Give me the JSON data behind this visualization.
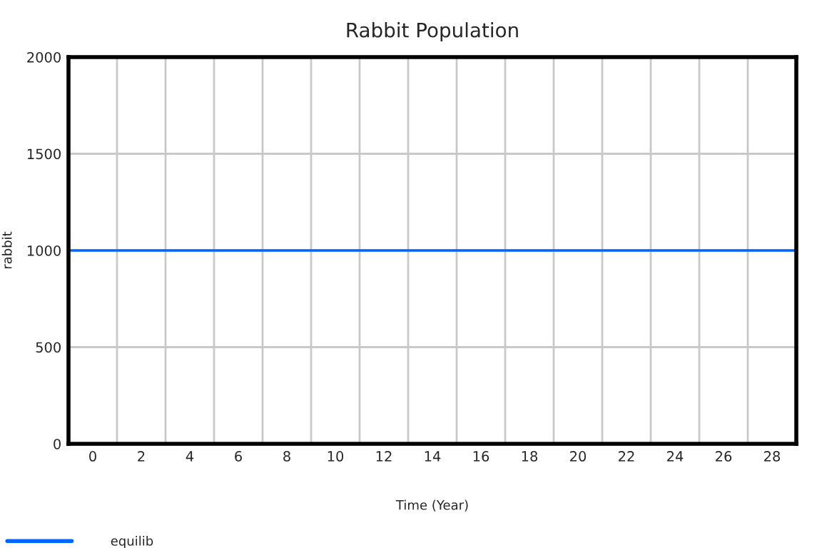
{
  "chart_data": {
    "type": "line",
    "title": "Rabbit Population",
    "xlabel": "Time (Year)",
    "ylabel": "rabbit",
    "series": [
      {
        "name": "equilib",
        "color": "#0066ff",
        "x": [
          -1,
          29
        ],
        "values": [
          1000,
          1000
        ]
      }
    ],
    "xlim": [
      -1,
      29
    ],
    "xticks": [
      0,
      {
        "value": 1,
        "label": null
      },
      2,
      {
        "value": 3,
        "label": null
      },
      4,
      {
        "value": 5,
        "label": null
      },
      6,
      {
        "value": 7,
        "label": null
      },
      8,
      {
        "value": 9,
        "label": null
      },
      10,
      {
        "value": 11,
        "label": null
      },
      12,
      {
        "value": 13,
        "label": null
      },
      14,
      {
        "value": 15,
        "label": null
      },
      16,
      {
        "value": 17,
        "label": null
      },
      18,
      {
        "value": 19,
        "label": null
      },
      20,
      {
        "value": 21,
        "label": null
      },
      22,
      {
        "value": 23,
        "label": null
      },
      24,
      {
        "value": 25,
        "label": null
      },
      26,
      {
        "value": 27,
        "label": null
      },
      28
    ],
    "ylim": [
      0,
      2000
    ],
    "yticks": [
      0,
      500,
      1000,
      1500,
      2000
    ],
    "grid": true,
    "legend": "bottom left",
    "marker": "none",
    "line_style": "solid"
  }
}
